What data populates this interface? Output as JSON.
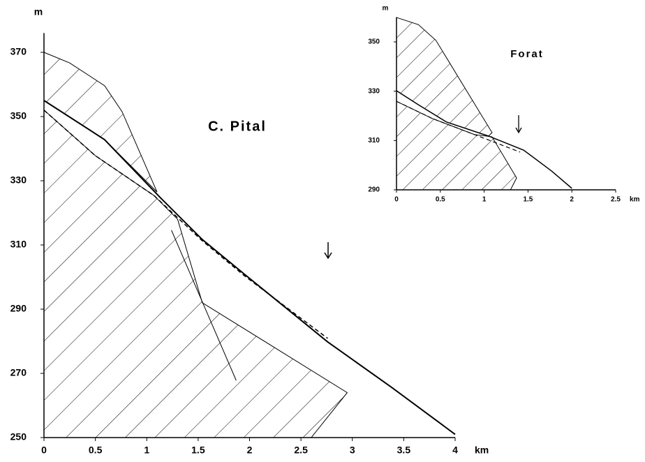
{
  "chart_data": [
    {
      "type": "line",
      "title": "C. Pital",
      "ylabel": "m",
      "xlabel": "km",
      "xlim": [
        0,
        4
      ],
      "ylim": [
        250,
        376
      ],
      "xticks": [
        0,
        0.5,
        1,
        1.5,
        2,
        2.5,
        3,
        3.5,
        4
      ],
      "yticks": [
        250,
        270,
        290,
        310,
        330,
        350,
        370
      ],
      "series": [
        {
          "color": "#000000",
          "style": "solid",
          "width": 2,
          "x": [
            0,
            0.59,
            1.13,
            1.54,
            1.95,
            2.76,
            3.38,
            4
          ],
          "values": [
            355,
            342.8,
            324.8,
            311.7,
            300.9,
            279.8,
            265.7,
            251
          ]
        },
        {
          "color": "#000000",
          "style": "dashed",
          "width": 1.5,
          "x": [
            0,
            0.5,
            1.07,
            1.54,
            1.95,
            2.76
          ],
          "values": [
            352,
            337.8,
            325.4,
            311.3,
            300.4,
            280.9
          ]
        },
        {
          "color": "#000000",
          "style": "solid",
          "width": 1,
          "x": [
            1.24,
            1.87
          ],
          "values": [
            314.6,
            267.8
          ]
        }
      ],
      "regions": [
        {
          "fill": "hatch",
          "x": [
            0,
            0.25,
            0.59,
            0.76,
            1.1,
            0.59,
            0
          ],
          "y": [
            370,
            366.7,
            359.6,
            351.5,
            326.5,
            342.8,
            355
          ]
        },
        {
          "fill": "hatch",
          "x": [
            0,
            0.5,
            1.07,
            1.3,
            1.54,
            2.95,
            2.6,
            0
          ],
          "y": [
            352,
            337.8,
            325.4,
            318,
            292,
            264,
            250,
            250
          ]
        }
      ]
    },
    {
      "type": "line",
      "title": "Forat",
      "ylabel": "m",
      "xlabel": "km",
      "xlim": [
        0,
        2.5
      ],
      "ylim": [
        290,
        360
      ],
      "xticks": [
        0,
        0.5,
        1,
        1.5,
        2,
        2.5
      ],
      "yticks": [
        290,
        310,
        330,
        350
      ],
      "series": [
        {
          "color": "#000000",
          "style": "solid",
          "width": 1.5,
          "x": [
            0,
            0.25,
            0.57,
            1.05,
            1.45,
            1.77,
            2
          ],
          "values": [
            330.2,
            324.5,
            317.5,
            311.8,
            306.1,
            297.6,
            290.6
          ]
        },
        {
          "color": "#000000",
          "style": "dashed",
          "width": 1.2,
          "x": [
            0,
            0.41,
            0.89,
            1.41
          ],
          "values": [
            325.9,
            318.9,
            312.4,
            305.3
          ]
        }
      ],
      "regions": [
        {
          "fill": "hatch",
          "x": [
            0,
            0.25,
            0.45,
            1.09,
            1.05,
            0.57,
            0.25,
            0
          ],
          "y": [
            359.9,
            357,
            350.6,
            313.2,
            311.8,
            317.5,
            324.5,
            330.2
          ]
        },
        {
          "fill": "hatch",
          "x": [
            0,
            0.41,
            0.89,
            1.09,
            1.37,
            1.3,
            0
          ],
          "y": [
            325.9,
            318.9,
            312.4,
            311.5,
            294.8,
            290,
            290
          ]
        }
      ]
    }
  ]
}
